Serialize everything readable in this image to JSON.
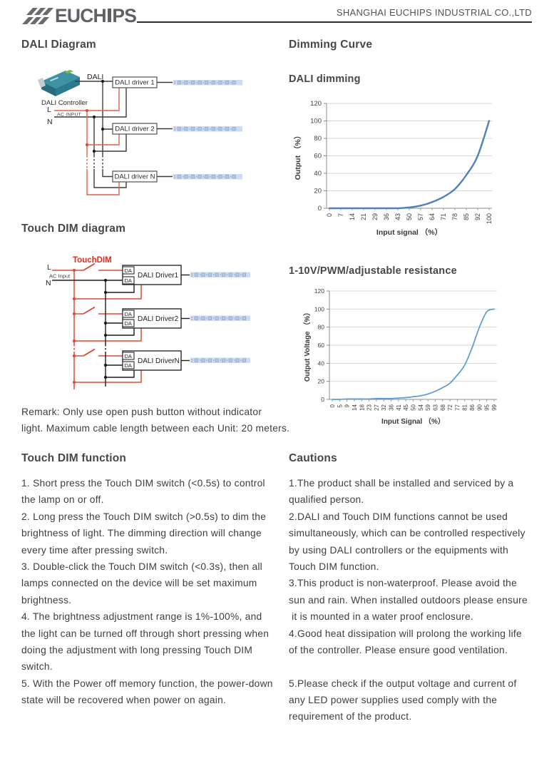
{
  "header": {
    "logo_text_left": "EUCH",
    "logo_text_right": "PS",
    "company": "SHANGHAI EUCHIPS INDUSTRIAL CO.,LTD"
  },
  "dali_diagram": {
    "title": "DALI Diagram",
    "controller_label": "DALI Controller",
    "bus_label": "DALI",
    "l_label": "L",
    "n_label": "N",
    "ac_input_label": "AC INPUT",
    "drivers": [
      "DALI driver 1",
      "DALI driver 2",
      "DALI driver N"
    ]
  },
  "touch_dim_diagram": {
    "title": "Touch DIM diagram",
    "switch_label": "TouchDIM",
    "l_label": "L",
    "n_label": "N",
    "ac_input_label": "AC Input",
    "terminal_label": "DA",
    "drivers": [
      "DALI Driver1",
      "DALI Driver2",
      "DALI DriverN"
    ]
  },
  "remark": {
    "lines": [
      "Remark: Only use open push button without indicator",
      "light. Maximum cable length between each Unit: 20 meters."
    ]
  },
  "touch_dim_function": {
    "title": "Touch DIM function",
    "lines": [
      "1. Short press the Touch DIM switch (<0.5s) to control",
      "the lamp on or off.",
      "2. Long press the Touch DIM switch (>0.5s) to dim the",
      "brightness of light. The dimming direction will change",
      "every time after pressing switch.",
      "3. Double-click the Touch DIM switch (<0.3s), then all",
      "lamps connected on the device will be set maximum",
      "brightness.",
      "4. The brightness adjustment range is 1%-100%, and",
      "the light can be turned off through short pressing when",
      "doing the adjustment with long pressing Touch DIM",
      "switch.",
      "5. With the Power off memory function, the power-down",
      "state will be recovered when power on again."
    ]
  },
  "cautions": {
    "title": "Cautions",
    "lines": [
      "1.The product shall be installed and serviced by a",
      "qualified person.",
      "2.DALI and Touch DIM functions cannot be used",
      "simultaneously, which can be controlled respectively",
      "by using DALI controllers or the equipments with",
      "Touch DIM function.",
      "3.This product is non-waterproof. Please avoid the",
      "sun and rain. When installed outdoors please ensure",
      " it is mounted in a water proof enclosure.",
      "4.Good heat dissipation will prolong the working life",
      "of the controller. Please ensure good ventilation.",
      "",
      "5.Please check if the output voltage and current of",
      "any LED power supplies used comply with the",
      "requirement of the product."
    ]
  },
  "dimming_curve_title": "Dimming Curve",
  "chart_data": [
    {
      "type": "line",
      "title": "DALI dimming",
      "xlabel": "Input signal （%）",
      "ylabel": "Output （%）",
      "categories": [
        "0",
        "7",
        "14",
        "21",
        "29",
        "36",
        "43",
        "50",
        "57",
        "64",
        "71",
        "78",
        "85",
        "92",
        "100"
      ],
      "values": [
        0,
        0,
        0,
        0,
        0,
        0,
        0,
        1,
        3,
        7,
        13,
        22,
        38,
        60,
        100
      ],
      "ylim": [
        0,
        120
      ],
      "yticks": [
        0,
        20,
        40,
        60,
        80,
        100,
        120
      ],
      "line_color": "#4f81bd",
      "grid": true,
      "legend": "none"
    },
    {
      "type": "line",
      "title": "1-10V/PWM/adjustable resistance",
      "xlabel": "Input Signal （%）",
      "ylabel": "Output Voltage （%）",
      "categories": [
        "0",
        "5",
        "9",
        "14",
        "18",
        "23",
        "27",
        "32",
        "36",
        "41",
        "45",
        "50",
        "54",
        "59",
        "63",
        "68",
        "72",
        "77",
        "81",
        "86",
        "90",
        "95",
        "99"
      ],
      "values": [
        0,
        0,
        0.5,
        0.5,
        0.5,
        0.5,
        1,
        1,
        1,
        1.5,
        2,
        3,
        4,
        6,
        9,
        13,
        18,
        27,
        38,
        57,
        80,
        97,
        100
      ],
      "ylim": [
        0,
        120
      ],
      "yticks": [
        0,
        20,
        40,
        60,
        80,
        100,
        120
      ],
      "line_color": "#5b9bd5",
      "grid": true,
      "legend": "none"
    }
  ],
  "colors": {
    "accent_red": "#d9402e",
    "wire_red": "#e0604c",
    "wire_black": "#1a1a1a",
    "chart_line_1": "#4f81bd",
    "chart_line_2": "#5b9bd5",
    "led_strip_bg": "#cfdcef",
    "heading": "#47474a",
    "body_text": "#3e3e3e"
  }
}
